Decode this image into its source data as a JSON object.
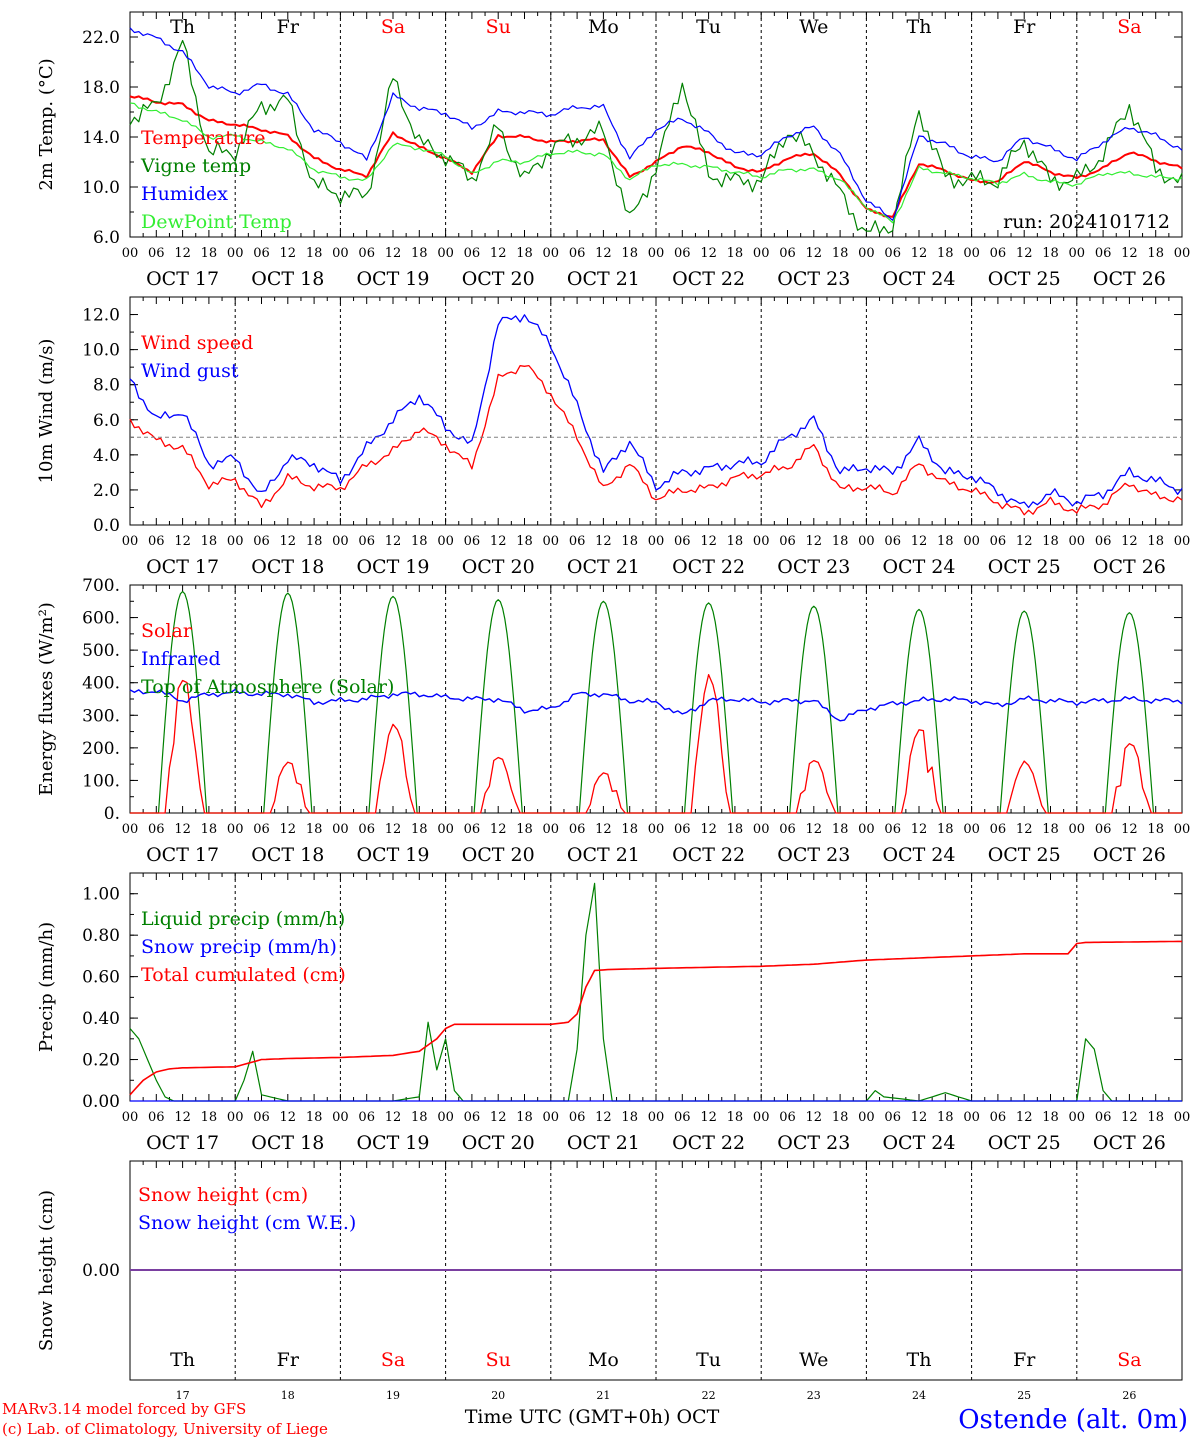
{
  "colors": {
    "red": "#ff0000",
    "blue": "#0000ff",
    "green": "#008000",
    "lightgreen": "#33ee33",
    "gray": "#808080",
    "purple": "#7a3fa0",
    "black": "#000000"
  },
  "days": [
    "Th",
    "Fr",
    "Sa",
    "Su",
    "Mo",
    "Tu",
    "We",
    "Th",
    "Fr",
    "Sa"
  ],
  "day_colors": [
    "#000000",
    "#000000",
    "#ff0000",
    "#ff0000",
    "#000000",
    "#000000",
    "#000000",
    "#000000",
    "#000000",
    "#ff0000"
  ],
  "dates": [
    "OCT 17",
    "OCT 18",
    "OCT 19",
    "OCT 20",
    "OCT 21",
    "OCT 22",
    "OCT 23",
    "OCT 24",
    "OCT 25",
    "OCT 26"
  ],
  "hour_ticks": [
    "00",
    "06",
    "12",
    "18"
  ],
  "end_tick": "00",
  "day_numbers": [
    "17",
    "18",
    "19",
    "20",
    "21",
    "22",
    "23",
    "24",
    "25",
    "26"
  ],
  "footer": {
    "model": "MARv3.14 model forced by GFS",
    "lab": "(c) Lab. of Climatology, University of Liege",
    "time_label": "Time UTC (GMT+0h) OCT",
    "station": "Ostende (alt. 0m)"
  },
  "chart_data": [
    {
      "type": "line",
      "ylabel": "2m Temp. (°C)",
      "ylim": [
        6,
        24
      ],
      "yticks": [
        "6.0",
        "10.0",
        "14.0",
        "18.0",
        "22.0"
      ],
      "run_label": "run: 2024101712",
      "x_unit": "hours since OCT 17 00 UTC",
      "series": [
        {
          "name": "Temperature",
          "color": "#ff0000",
          "x": [
            0,
            6,
            12,
            18,
            24,
            30,
            36,
            42,
            48,
            54,
            60,
            66,
            72,
            78,
            84,
            90,
            96,
            102,
            108,
            114,
            120,
            126,
            132,
            138,
            144,
            150,
            156,
            162,
            168,
            174,
            180,
            186,
            192,
            198,
            204,
            210,
            216,
            222,
            228,
            234,
            240
          ],
          "y": [
            17.3,
            16.8,
            16.6,
            15.3,
            15.0,
            14.6,
            14.1,
            12.3,
            11.4,
            10.9,
            14.3,
            13.2,
            12.3,
            11.2,
            14.1,
            14.0,
            13.6,
            13.7,
            13.8,
            10.8,
            12.0,
            13.3,
            12.8,
            11.6,
            11.2,
            12.3,
            12.7,
            11.0,
            8.2,
            7.6,
            11.9,
            11.3,
            10.5,
            10.4,
            12.1,
            11.2,
            10.7,
            11.5,
            12.8,
            12.1,
            11.5
          ]
        },
        {
          "name": "Vigne temp",
          "color": "#008000",
          "x": [
            0,
            6,
            12,
            18,
            24,
            30,
            36,
            42,
            48,
            54,
            60,
            66,
            72,
            78,
            84,
            90,
            96,
            102,
            108,
            114,
            120,
            126,
            132,
            138,
            144,
            150,
            156,
            162,
            168,
            174,
            180,
            186,
            192,
            198,
            204,
            210,
            216,
            222,
            228,
            234,
            240
          ],
          "y": [
            15.5,
            16.5,
            21.5,
            12.7,
            12.8,
            16.5,
            16.9,
            10.1,
            9.5,
            9.2,
            18.7,
            13.5,
            12.5,
            10.6,
            14.8,
            10.5,
            13.1,
            13.9,
            14.5,
            7.2,
            11.5,
            18.5,
            11.0,
            10.5,
            10.5,
            14.5,
            12.7,
            9.5,
            6.2,
            7.0,
            16.2,
            10.7,
            10.6,
            10.5,
            13.8,
            10.5,
            10.6,
            12.6,
            16.6,
            11.5,
            10.2
          ]
        },
        {
          "name": "Humidex",
          "color": "#0000ff",
          "x": [
            0,
            6,
            12,
            18,
            24,
            30,
            36,
            42,
            48,
            54,
            60,
            66,
            72,
            78,
            84,
            90,
            96,
            102,
            108,
            114,
            120,
            126,
            132,
            138,
            144,
            150,
            156,
            162,
            168,
            174,
            180,
            186,
            192,
            198,
            204,
            210,
            216,
            222,
            228,
            234,
            240
          ],
          "y": [
            22.7,
            21.9,
            20.8,
            18.1,
            17.5,
            18.2,
            17.4,
            14.6,
            13.6,
            12.2,
            17.3,
            16.3,
            15.9,
            14.7,
            16.0,
            16.0,
            15.8,
            16.4,
            16.4,
            12.3,
            14.6,
            15.5,
            14.3,
            12.7,
            12.6,
            14.1,
            14.8,
            12.6,
            8.9,
            7.4,
            14.1,
            13.4,
            12.4,
            12.1,
            14.0,
            13.1,
            12.2,
            13.6,
            14.8,
            14.1,
            13.0
          ]
        },
        {
          "name": "DewPoint Temp",
          "color": "#33ee33",
          "x": [
            0,
            6,
            12,
            18,
            24,
            30,
            36,
            42,
            48,
            54,
            60,
            66,
            72,
            78,
            84,
            90,
            96,
            102,
            108,
            114,
            120,
            126,
            132,
            138,
            144,
            150,
            156,
            162,
            168,
            174,
            180,
            186,
            192,
            198,
            204,
            210,
            216,
            222,
            228,
            234,
            240
          ],
          "y": [
            16.7,
            16.0,
            15.4,
            14.0,
            14.1,
            13.6,
            13.1,
            11.4,
            10.8,
            10.5,
            13.4,
            13.1,
            12.5,
            11.0,
            12.1,
            12.0,
            12.7,
            12.8,
            12.6,
            10.6,
            11.8,
            11.8,
            11.6,
            11.2,
            10.8,
            11.4,
            11.4,
            10.6,
            8.4,
            7.2,
            11.5,
            11.1,
            10.7,
            10.3,
            11.0,
            10.4,
            10.2,
            11.1,
            11.1,
            10.8,
            10.7
          ]
        }
      ]
    },
    {
      "type": "line",
      "ylabel": "10m Wind (m/s)",
      "ylim": [
        0,
        13
      ],
      "yticks": [
        "0.0",
        "2.0",
        "4.0",
        "6.0",
        "8.0",
        "10.0",
        "12.0"
      ],
      "reference_line": 5,
      "x_unit": "hours since OCT 17 00 UTC",
      "series": [
        {
          "name": "Wind speed",
          "color": "#ff0000",
          "x": [
            0,
            6,
            12,
            18,
            24,
            30,
            36,
            42,
            48,
            54,
            60,
            66,
            72,
            78,
            84,
            90,
            96,
            102,
            108,
            114,
            120,
            126,
            132,
            138,
            144,
            150,
            156,
            162,
            168,
            174,
            180,
            186,
            192,
            198,
            204,
            210,
            216,
            222,
            228,
            234,
            240
          ],
          "y": [
            6.0,
            4.8,
            4.4,
            2.3,
            2.6,
            1.0,
            2.7,
            2.2,
            2.1,
            3.4,
            4.2,
            5.5,
            4.6,
            3.3,
            8.3,
            9.2,
            7.5,
            5.0,
            2.0,
            3.5,
            1.5,
            2.0,
            2.1,
            2.7,
            2.9,
            3.3,
            4.5,
            2.0,
            2.2,
            1.8,
            3.5,
            2.4,
            2.0,
            1.3,
            0.7,
            1.3,
            0.8,
            1.2,
            2.4,
            1.6,
            1.5
          ]
        },
        {
          "name": "Wind gust",
          "color": "#0000ff",
          "x": [
            0,
            6,
            12,
            18,
            24,
            30,
            36,
            42,
            48,
            54,
            60,
            66,
            72,
            78,
            84,
            90,
            96,
            102,
            108,
            114,
            120,
            126,
            132,
            138,
            144,
            150,
            156,
            162,
            168,
            174,
            180,
            186,
            192,
            198,
            204,
            210,
            216,
            222,
            228,
            234,
            240
          ],
          "y": [
            8.3,
            6.0,
            6.5,
            3.5,
            3.8,
            1.6,
            3.8,
            3.5,
            2.5,
            4.4,
            6.0,
            7.4,
            5.6,
            4.5,
            11.5,
            12.0,
            10.3,
            6.8,
            3.0,
            4.8,
            2.2,
            3.0,
            3.2,
            3.5,
            3.6,
            5.0,
            6.0,
            3.0,
            3.3,
            3.0,
            4.8,
            3.0,
            2.8,
            1.9,
            1.0,
            1.8,
            1.3,
            1.8,
            3.0,
            2.5,
            2.0
          ]
        }
      ]
    },
    {
      "type": "line",
      "ylabel": "Energy fluxes (W/m²)",
      "ylim": [
        0,
        700
      ],
      "yticks": [
        "0.",
        "100.",
        "200.",
        "300.",
        "400.",
        "500.",
        "600.",
        "700."
      ],
      "x_unit": "hours since OCT 17 00 UTC",
      "series": [
        {
          "name": "Solar",
          "color": "#ff0000",
          "peaks": [
            430,
            165,
            280,
            180,
            130,
            430,
            170,
            270,
            160,
            225
          ]
        },
        {
          "name": "Infrared",
          "color": "#0000ff",
          "x": [
            0,
            6,
            12,
            18,
            24,
            30,
            36,
            42,
            48,
            54,
            60,
            66,
            72,
            78,
            84,
            90,
            96,
            102,
            108,
            114,
            120,
            126,
            132,
            138,
            144,
            150,
            156,
            162,
            168,
            174,
            180,
            186,
            192,
            198,
            204,
            210,
            216,
            222,
            228,
            234,
            240
          ],
          "y": [
            370,
            375,
            345,
            365,
            370,
            365,
            365,
            340,
            345,
            350,
            365,
            365,
            355,
            350,
            350,
            315,
            320,
            365,
            365,
            345,
            340,
            300,
            345,
            350,
            340,
            345,
            345,
            285,
            320,
            335,
            345,
            350,
            345,
            330,
            350,
            345,
            340,
            345,
            350,
            345,
            345
          ]
        },
        {
          "name": "Top of Atmosphere (Solar)",
          "color": "#008000",
          "peaks": [
            680,
            675,
            665,
            655,
            650,
            645,
            635,
            625,
            620,
            615
          ]
        }
      ]
    },
    {
      "type": "line",
      "ylabel": "Precip (mm/h)",
      "ylim": [
        0,
        1.1
      ],
      "yticks": [
        "0.00",
        "0.20",
        "0.40",
        "0.60",
        "0.80",
        "1.00"
      ],
      "x_unit": "hours since OCT 17 00 UTC",
      "series": [
        {
          "name": "Liquid precip (mm/h)",
          "color": "#008000",
          "x": [
            0,
            2,
            4,
            6,
            8,
            10,
            12,
            18,
            24,
            26,
            28,
            30,
            36,
            48,
            60,
            66,
            68,
            70,
            72,
            74,
            76,
            78,
            84,
            96,
            100,
            102,
            104,
            106,
            108,
            110,
            120,
            132,
            144,
            156,
            168,
            170,
            172,
            180,
            186,
            192,
            204,
            216,
            218,
            220,
            222,
            224,
            230,
            240
          ],
          "y": [
            0.35,
            0.3,
            0.2,
            0.1,
            0.02,
            0,
            0,
            0,
            0,
            0.1,
            0.24,
            0.03,
            0,
            0,
            0,
            0.02,
            0.38,
            0.15,
            0.3,
            0.05,
            0,
            0,
            0,
            0,
            0,
            0.25,
            0.8,
            1.05,
            0.3,
            0,
            0,
            0,
            0,
            0,
            0,
            0.05,
            0.02,
            0,
            0.04,
            0,
            0,
            0,
            0.3,
            0.25,
            0.05,
            0,
            0,
            0
          ]
        },
        {
          "name": "Snow precip (mm/h)",
          "color": "#0000ff",
          "x": [
            0,
            240
          ],
          "y": [
            0,
            0
          ]
        },
        {
          "name": "Total cumulated (cm)",
          "color": "#ff0000",
          "x": [
            0,
            3,
            6,
            9,
            12,
            24,
            30,
            36,
            48,
            60,
            66,
            70,
            72,
            74,
            84,
            96,
            100,
            102,
            104,
            106,
            110,
            120,
            132,
            144,
            156,
            168,
            180,
            192,
            204,
            214,
            216,
            218,
            240
          ],
          "y": [
            0.03,
            0.1,
            0.14,
            0.155,
            0.16,
            0.165,
            0.2,
            0.205,
            0.21,
            0.22,
            0.24,
            0.3,
            0.35,
            0.37,
            0.37,
            0.37,
            0.38,
            0.42,
            0.55,
            0.63,
            0.635,
            0.64,
            0.645,
            0.65,
            0.66,
            0.68,
            0.69,
            0.7,
            0.71,
            0.71,
            0.76,
            0.765,
            0.77
          ]
        }
      ]
    },
    {
      "type": "line",
      "ylabel": "Snow height (cm)",
      "yticks": [
        "0.00"
      ],
      "ylim": [
        -1,
        1
      ],
      "x_unit": "hours since OCT 17 00 UTC",
      "series": [
        {
          "name": "Snow height (cm)",
          "color": "#ff0000",
          "x": [
            0,
            240
          ],
          "y": [
            0,
            0
          ]
        },
        {
          "name": "Snow height (cm W.E.)",
          "color": "#0000ff",
          "x": [
            0,
            240
          ],
          "y": [
            0,
            0
          ]
        }
      ]
    }
  ]
}
